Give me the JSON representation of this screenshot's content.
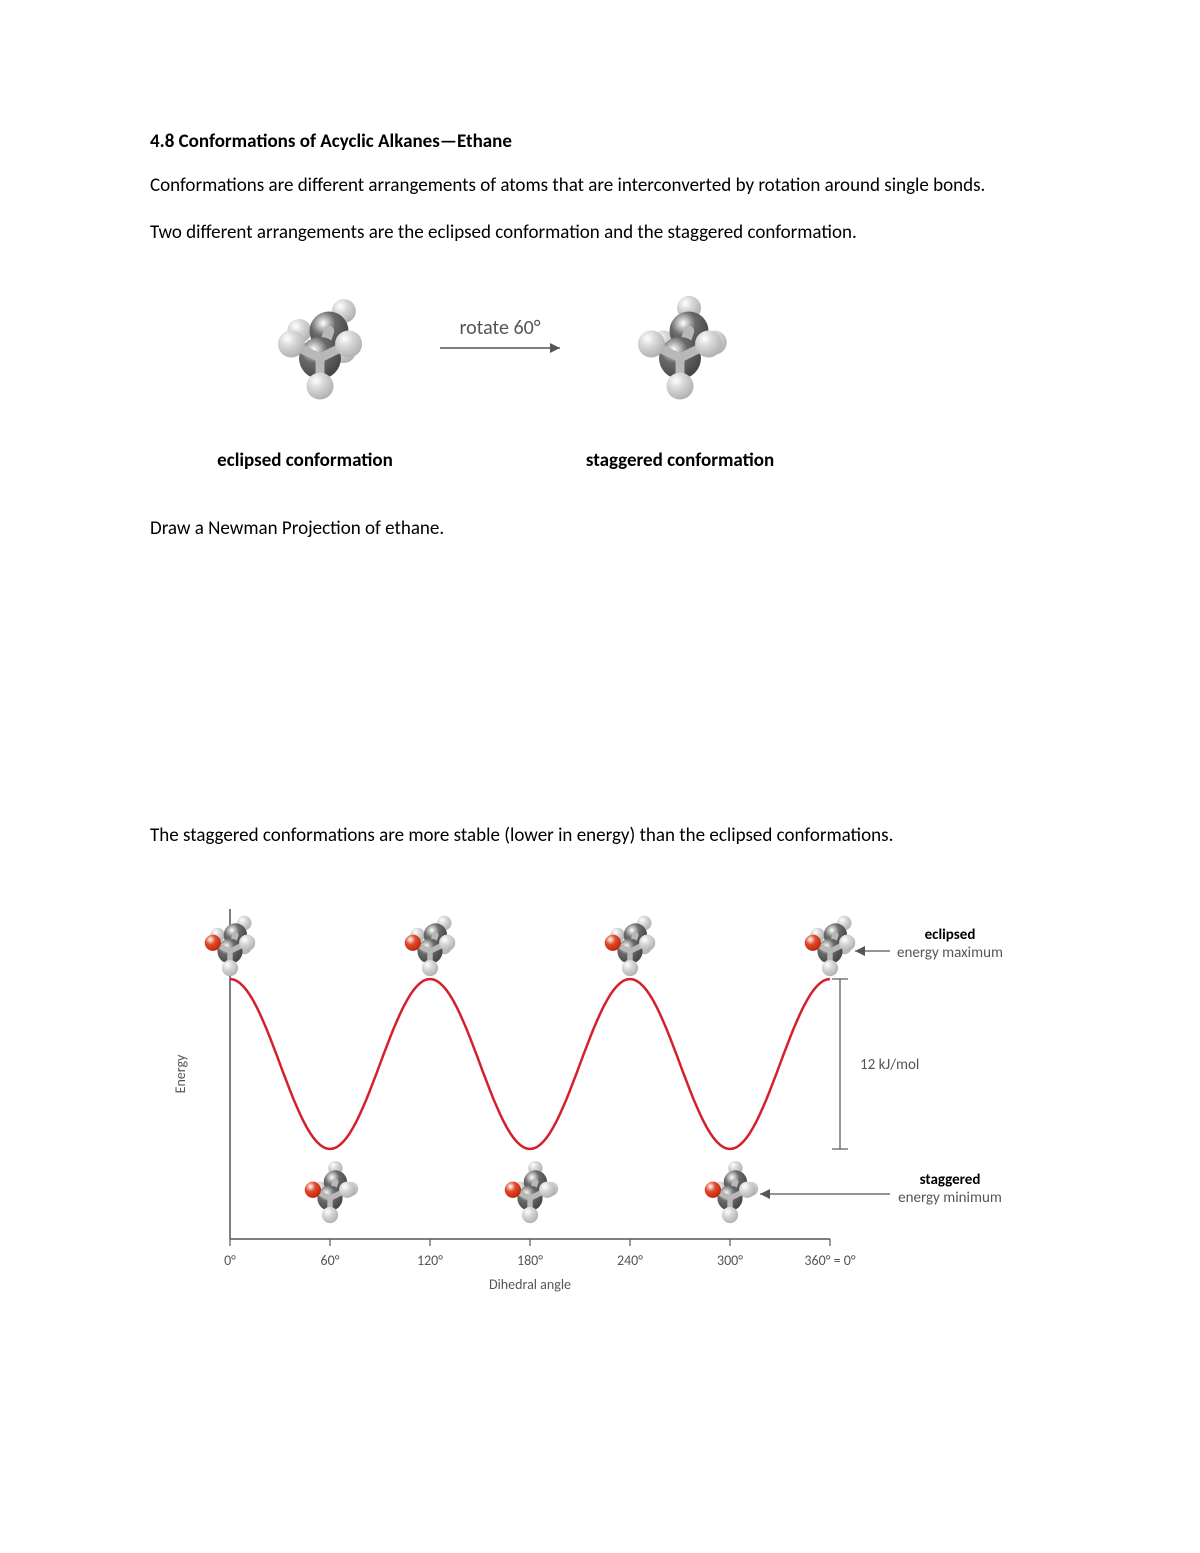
{
  "heading": "4.8 Conformations of Acyclic Alkanes—Ethane",
  "para1": "Conformations are different arrangements of atoms that are interconverted by rotation around single bonds.",
  "para2": "Two different arrangements are the eclipsed conformation and the staggered conformation.",
  "conf_figure": {
    "rotate_label": "rotate 60°",
    "left_caption": "eclipsed conformation",
    "right_caption": "staggered conformation",
    "carbon_color": "#6a6a6a",
    "hydrogen_color": "#d6d6d6",
    "bond_color": "#b8b8b8",
    "text_color": "#555555",
    "caption_color": "#000000"
  },
  "newman_prompt": "Draw a Newman Projection of ethane.",
  "para3": "The staggered conformations are more stable (lower in energy) than the eclipsed conformations.",
  "energy_chart": {
    "type": "line",
    "x_label": "Dihedral angle",
    "y_label": "Energy",
    "x_ticks": [
      "0°",
      "60°",
      "120°",
      "180°",
      "240°",
      "300°",
      "360° = 0°"
    ],
    "x_tick_positions": [
      0,
      60,
      120,
      180,
      240,
      300,
      360
    ],
    "max_positions": [
      0,
      120,
      240,
      360
    ],
    "min_positions": [
      60,
      180,
      300
    ],
    "barrier_label": "12 kJ/mol",
    "eclipsed_label_bold": "eclipsed",
    "eclipsed_label_sub": "energy maximum",
    "staggered_label_bold": "staggered",
    "staggered_label_sub": "energy minimum",
    "curve_color": "#d4202a",
    "axis_color": "#555555",
    "text_color": "#555555",
    "carbon_color": "#6a6a6a",
    "hydrogen_color": "#d6d6d6",
    "marker_color": "#e24a2c",
    "bond_color": "#b8b8b8",
    "background_color": "#ffffff",
    "curve_width": 2.5,
    "axis_width": 1.5,
    "tick_fontsize": 14,
    "label_fontsize": 14,
    "anno_fontsize": 15
  }
}
